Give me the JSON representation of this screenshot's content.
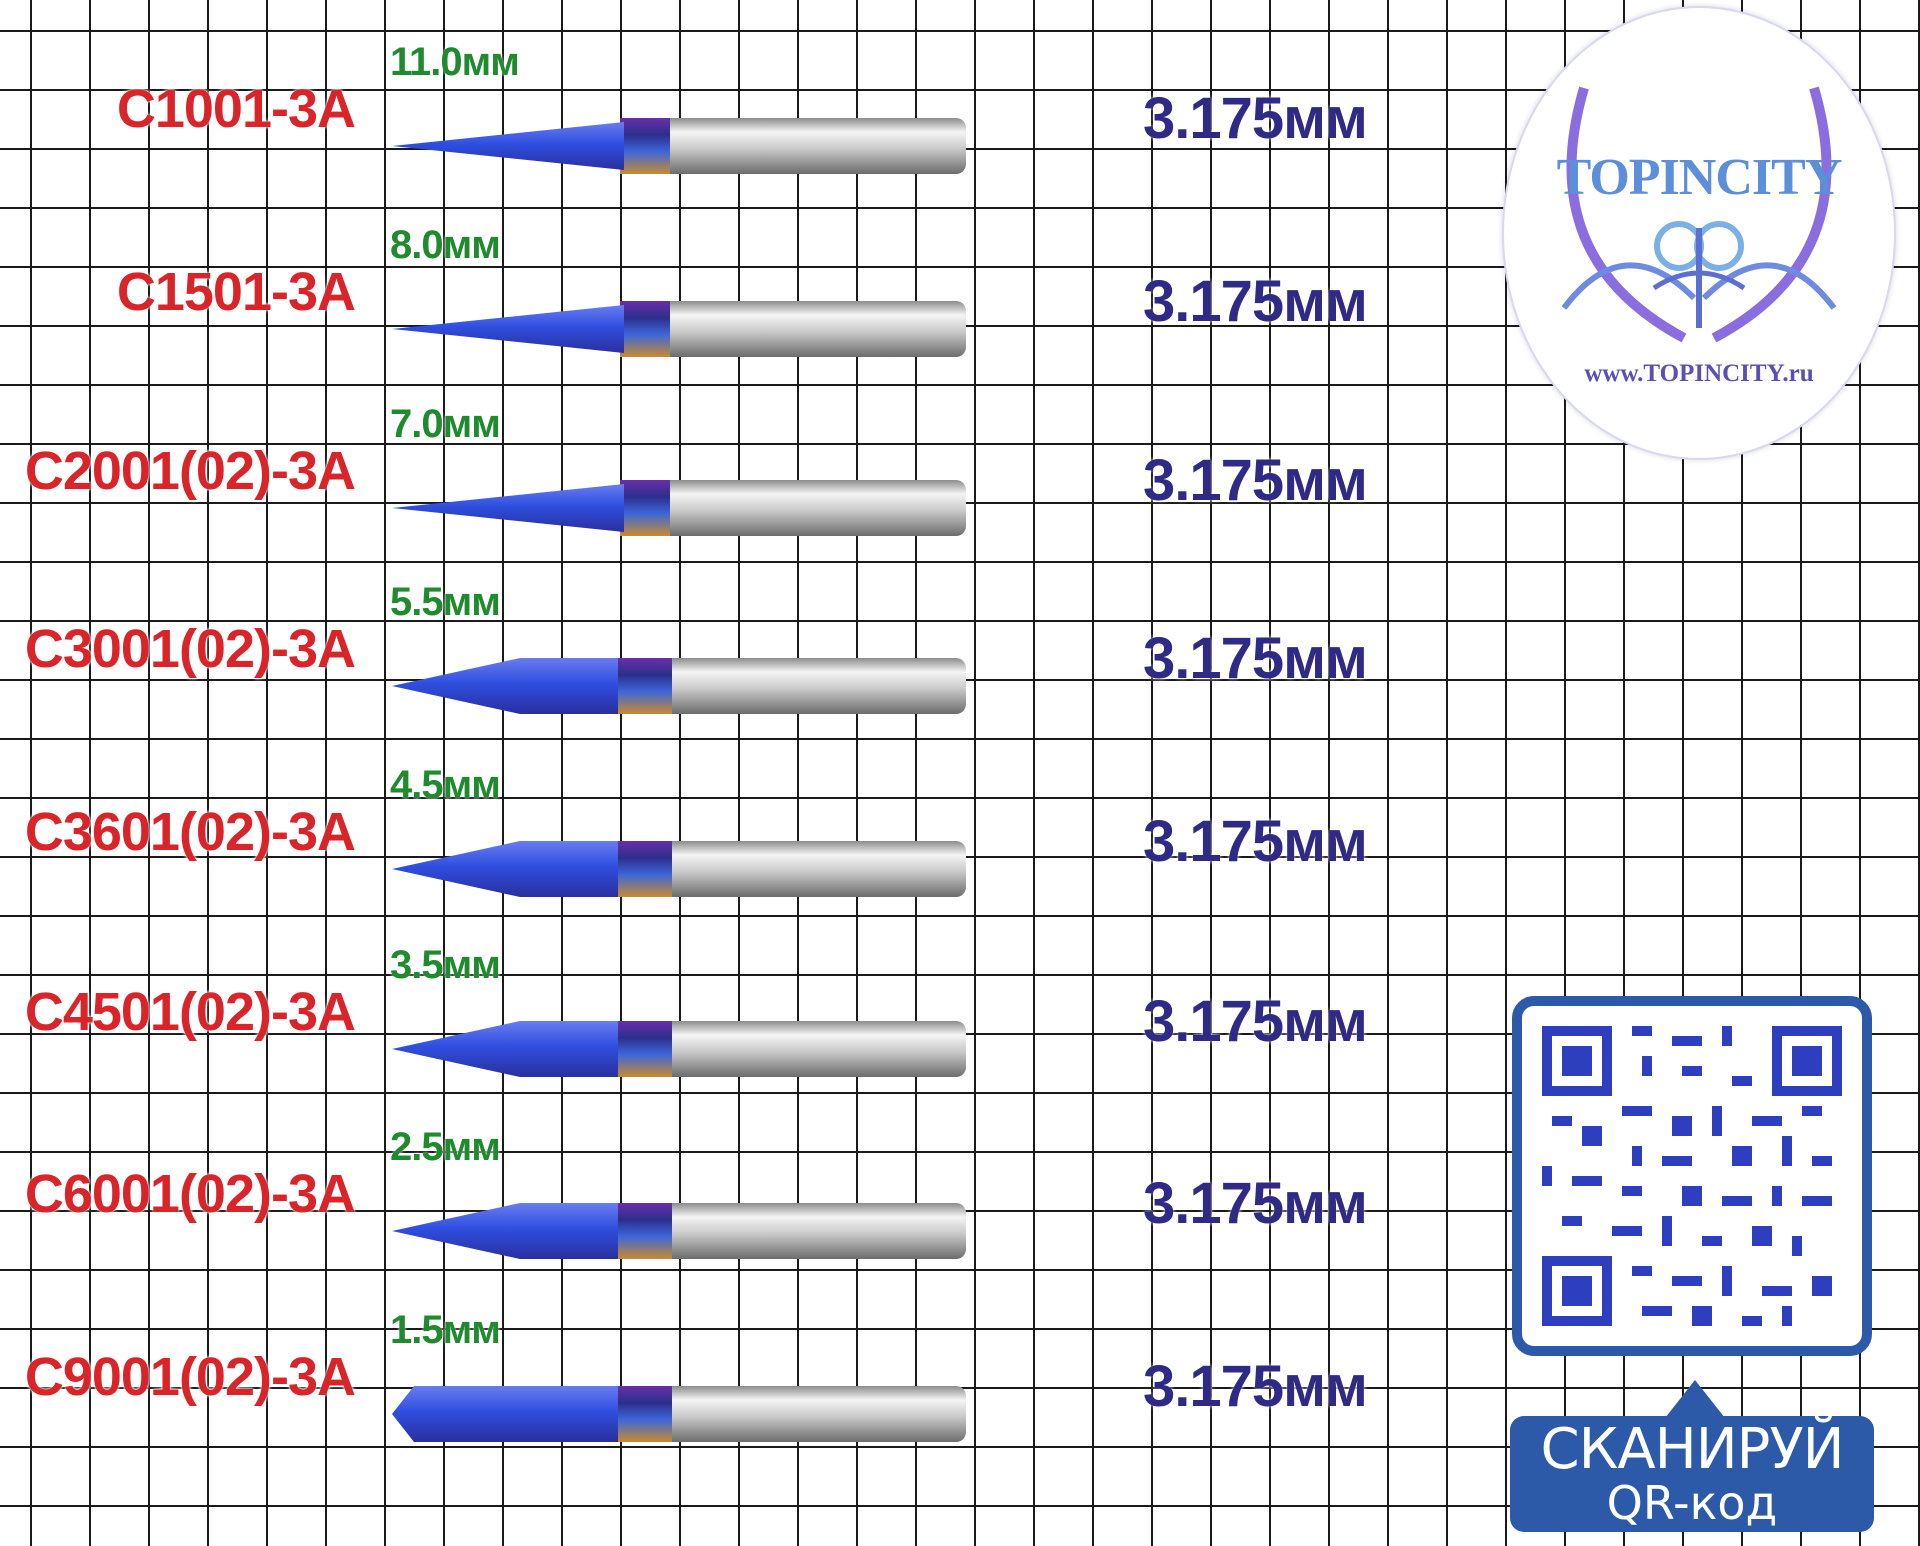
{
  "tools": [
    {
      "code": "C1001-3A",
      "length": "11.0мм",
      "shank": "3.175мм",
      "tip": "needle"
    },
    {
      "code": "C1501-3A",
      "length": "8.0мм",
      "shank": "3.175мм",
      "tip": "needle"
    },
    {
      "code": "C2001(02)-3A",
      "length": "7.0мм",
      "shank": "3.175мм",
      "tip": "needle"
    },
    {
      "code": "C3001(02)-3A",
      "length": "5.5мм",
      "shank": "3.175мм",
      "tip": "point"
    },
    {
      "code": "C3601(02)-3A",
      "length": "4.5мм",
      "shank": "3.175мм",
      "tip": "point"
    },
    {
      "code": "C4501(02)-3A",
      "length": "3.5мм",
      "shank": "3.175мм",
      "tip": "point"
    },
    {
      "code": "C6001(02)-3A",
      "length": "2.5мм",
      "shank": "3.175мм",
      "tip": "point"
    },
    {
      "code": "C9001(02)-3A",
      "length": "1.5мм",
      "shank": "3.175мм",
      "tip": "blunt"
    }
  ],
  "logo": {
    "title": "TOPINCITY",
    "url": "www.TOPINCITY.ru",
    "icon": "topincity-emblem"
  },
  "qr": {
    "line1": "СКАНИРУЙ",
    "line2": "QR-код",
    "icon": "qr-code"
  },
  "colors": {
    "code": "#d9242a",
    "length": "#1f8a2e",
    "shank": "#2f2a85",
    "coating": "#3a4fe0",
    "qr_blue": "#2d5aa8"
  }
}
